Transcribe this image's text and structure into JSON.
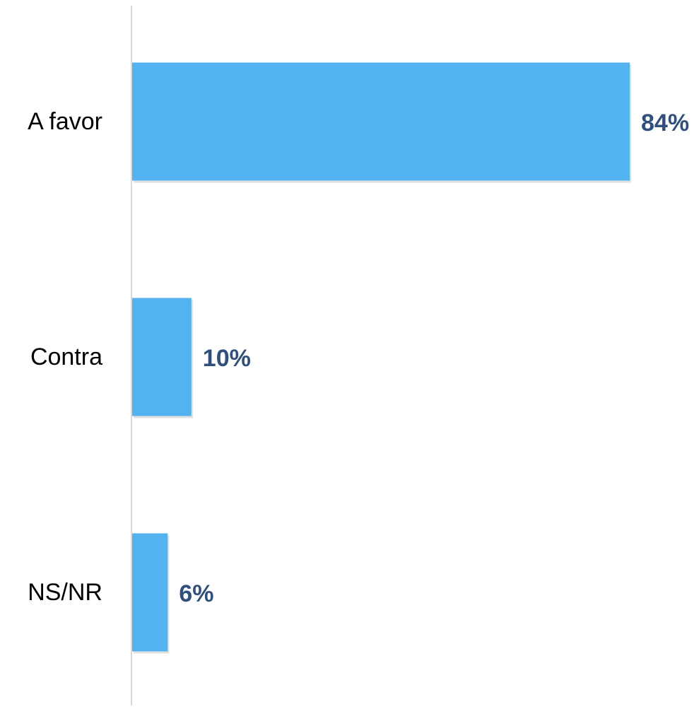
{
  "chart_data": {
    "type": "bar",
    "orientation": "horizontal",
    "categories": [
      "A favor",
      "Contra",
      "NS/NR"
    ],
    "values": [
      84,
      10,
      6
    ],
    "value_labels": [
      "84%",
      "10%",
      "6%"
    ],
    "title": "",
    "xlabel": "",
    "ylabel": "",
    "xlim": [
      0,
      100
    ],
    "grid": false,
    "legend": "none",
    "colors": {
      "bar": "#53B3F0",
      "value_label": "#2F4F7F",
      "axis": "#D9D9D9"
    }
  }
}
